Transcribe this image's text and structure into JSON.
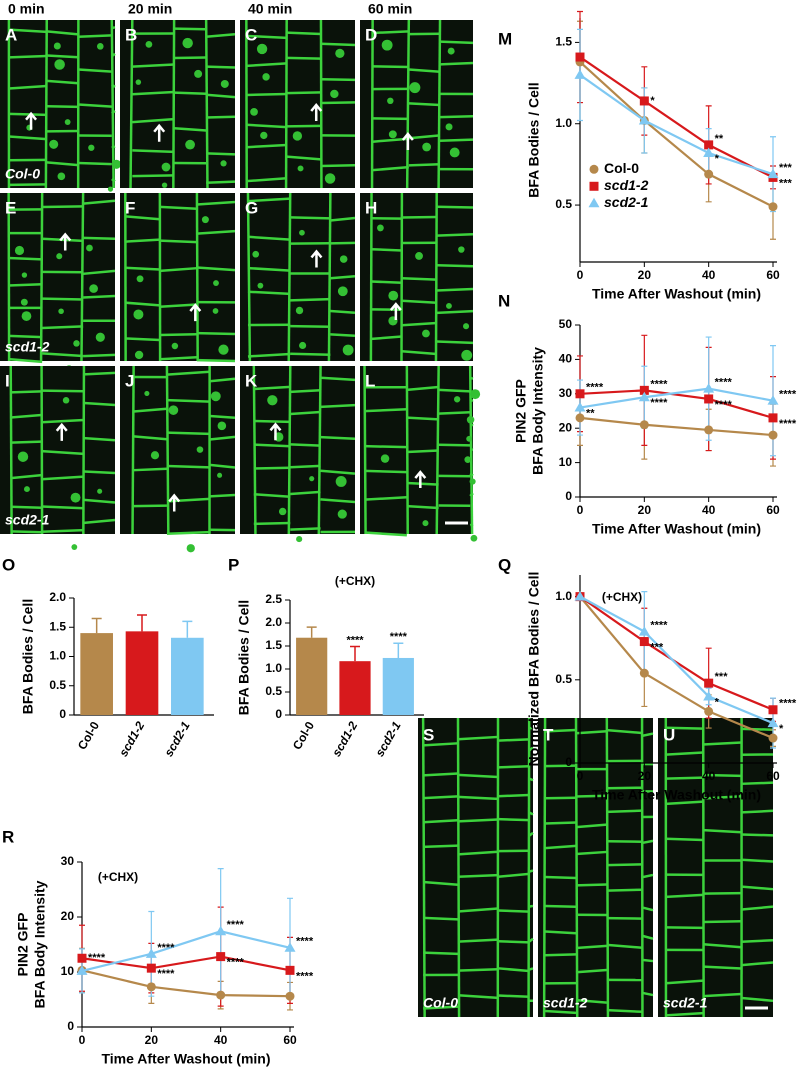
{
  "micrographs": {
    "column_headers": [
      "0 min",
      "20 min",
      "40 min",
      "60 min"
    ],
    "panels": [
      "A",
      "B",
      "C",
      "D",
      "E",
      "F",
      "G",
      "H",
      "I",
      "J",
      "K",
      "L"
    ],
    "row_labels": [
      "Col-0",
      "scd1-2",
      "scd2-1"
    ],
    "controls": {
      "panels": [
        "S",
        "T",
        "U"
      ],
      "labels": [
        "Col-0",
        "scd1-2",
        "scd2-1"
      ]
    }
  },
  "chart_data": [
    {
      "panel": "M",
      "type": "line",
      "x": [
        0,
        20,
        40,
        60
      ],
      "xlim": [
        0,
        60
      ],
      "xticks": [
        0,
        20,
        40,
        60
      ],
      "ylim": [
        0.15,
        1.65
      ],
      "yticks": [
        0.5,
        {
          "value": 1,
          "label": "1.0"
        },
        1.5
      ],
      "xlabel": "Time After Washout (min)",
      "ylabel": [
        "BFA Bodies / Cell"
      ],
      "legend": "center left",
      "series": [
        {
          "name": "Col-0",
          "color": "#b5884b",
          "values": [
            1.38,
            1.02,
            0.69,
            0.49
          ],
          "errors": [
            0.25,
            0.2,
            0.17,
            0.2
          ],
          "significance": [
            null,
            null,
            null,
            null
          ]
        },
        {
          "name": "scd1-2",
          "color": "#d7191c",
          "values": [
            1.41,
            1.14,
            0.87,
            0.67
          ],
          "errors": [
            0.28,
            0.21,
            0.24,
            0.07
          ],
          "significance": [
            null,
            "*",
            "**",
            "***"
          ]
        },
        {
          "name": "scd2-1",
          "color": "#7fc8f2",
          "values": [
            1.3,
            1.02,
            0.82,
            0.69
          ],
          "errors": [
            0.28,
            0.2,
            0.15,
            0.23
          ],
          "significance": [
            null,
            null,
            "*",
            "***"
          ]
        }
      ]
    },
    {
      "panel": "N",
      "type": "line",
      "x": [
        0,
        20,
        40,
        60
      ],
      "xlim": [
        0,
        60
      ],
      "xticks": [
        0,
        20,
        40,
        60
      ],
      "ylim": [
        0,
        50
      ],
      "yticks": [
        0,
        10,
        20,
        30,
        40,
        50
      ],
      "xlabel": "Time After Washout (min)",
      "ylabel": [
        "PIN2 GFP",
        "BFA Body Intensity"
      ],
      "series": [
        {
          "name": "Col-0",
          "color": "#b5884b",
          "values": [
            23,
            21,
            19.5,
            18
          ],
          "errors": [
            8,
            10,
            6,
            9
          ],
          "significance": [
            null,
            null,
            null,
            null
          ]
        },
        {
          "name": "scd1-2",
          "color": "#d7191c",
          "values": [
            30,
            31,
            28.5,
            23
          ],
          "errors": [
            11,
            16,
            15,
            12
          ],
          "significance": [
            "****",
            "****",
            "****",
            "****"
          ]
        },
        {
          "name": "scd2-1",
          "color": "#7fc8f2",
          "values": [
            26,
            29,
            31.5,
            28
          ],
          "errors": [
            8,
            9,
            15,
            16
          ],
          "significance": [
            "**",
            "****",
            "****",
            "****"
          ]
        }
      ]
    },
    {
      "panel": "O",
      "type": "bar",
      "categories": [
        "Col-0",
        "scd1-2",
        "scd2-1"
      ],
      "values": [
        1.4,
        1.43,
        1.32
      ],
      "errors": [
        0.25,
        0.28,
        0.28
      ],
      "colors": [
        "#b5884b",
        "#d7191c",
        "#7fc8f2"
      ],
      "significance": [
        null,
        null,
        null
      ],
      "ylim": [
        0,
        2
      ],
      "yticks": [
        0,
        0.5,
        {
          "value": 1,
          "label": "1.0"
        },
        1.5,
        {
          "value": 2,
          "label": "2.0"
        }
      ],
      "ylabel": [
        "BFA Bodies / Cell"
      ]
    },
    {
      "panel": "P",
      "type": "bar",
      "categories": [
        "Col-0",
        "scd1-2",
        "scd2-1"
      ],
      "values": [
        1.68,
        1.17,
        1.24
      ],
      "errors": [
        0.23,
        0.32,
        0.32
      ],
      "colors": [
        "#b5884b",
        "#d7191c",
        "#7fc8f2"
      ],
      "significance": [
        null,
        "****",
        "****"
      ],
      "annotation": "(+CHX)",
      "ylim": [
        0,
        2.5
      ],
      "yticks": [
        0,
        0.5,
        {
          "value": 1,
          "label": "1.0"
        },
        1.5,
        {
          "value": 2,
          "label": "2.0"
        },
        2.5
      ],
      "ylabel": [
        "BFA Bodies / Cell"
      ]
    },
    {
      "panel": "Q",
      "type": "line",
      "x": [
        0,
        20,
        40,
        60
      ],
      "xlim": [
        0,
        60
      ],
      "xticks": [
        0,
        20,
        40,
        60
      ],
      "ylim": [
        0,
        1.13
      ],
      "yticks": [
        0,
        0.5,
        {
          "value": 1,
          "label": "1.0"
        }
      ],
      "annotation": "(+CHX)",
      "xlabel": "Time After Washout (min)",
      "ylabel": [
        "Normalized BFA Bodies / Cell"
      ],
      "series": [
        {
          "name": "Col-0",
          "color": "#b5884b",
          "values": [
            1,
            0.54,
            0.31,
            0.15
          ],
          "errors": [
            0,
            0.2,
            0.1,
            0.05
          ],
          "significance": [
            null,
            null,
            null,
            null
          ]
        },
        {
          "name": "scd1-2",
          "color": "#d7191c",
          "values": [
            1,
            0.73,
            0.48,
            0.32
          ],
          "errors": [
            0,
            0.2,
            0.21,
            0.07
          ],
          "significance": [
            null,
            "***",
            "***",
            "****"
          ]
        },
        {
          "name": "scd2-1",
          "color": "#7fc8f2",
          "values": [
            1,
            0.79,
            0.4,
            0.24
          ],
          "errors": [
            0,
            0.24,
            0.05,
            0.15
          ],
          "significance": [
            null,
            "****",
            "*",
            "*"
          ]
        }
      ]
    },
    {
      "panel": "R",
      "type": "line",
      "x": [
        0,
        20,
        40,
        60
      ],
      "xlim": [
        0,
        60
      ],
      "xticks": [
        0,
        20,
        40,
        60
      ],
      "ylim": [
        0,
        30
      ],
      "yticks": [
        0,
        10,
        20,
        30
      ],
      "annotation": "(+CHX)",
      "xlabel": "Time After Washout (min)",
      "ylabel": [
        "PIN2 GFP",
        "BFA Body Intensity"
      ],
      "series": [
        {
          "name": "Col-0",
          "color": "#b5884b",
          "values": [
            10.3,
            7.3,
            5.8,
            5.6
          ],
          "errors": [
            4,
            3,
            2.5,
            2.5
          ],
          "significance": [
            null,
            null,
            null,
            null
          ]
        },
        {
          "name": "scd1-2",
          "color": "#d7191c",
          "values": [
            12.5,
            10.7,
            12.8,
            10.3
          ],
          "errors": [
            6,
            4.5,
            9,
            6
          ],
          "significance": [
            "****",
            "****",
            "****",
            "****"
          ]
        },
        {
          "name": "scd2-1",
          "color": "#7fc8f2",
          "values": [
            10.2,
            13.3,
            17.4,
            14.4
          ],
          "errors": [
            4,
            7.7,
            11.4,
            9
          ],
          "significance": [
            null,
            "****",
            "****",
            "****"
          ]
        }
      ]
    }
  ]
}
